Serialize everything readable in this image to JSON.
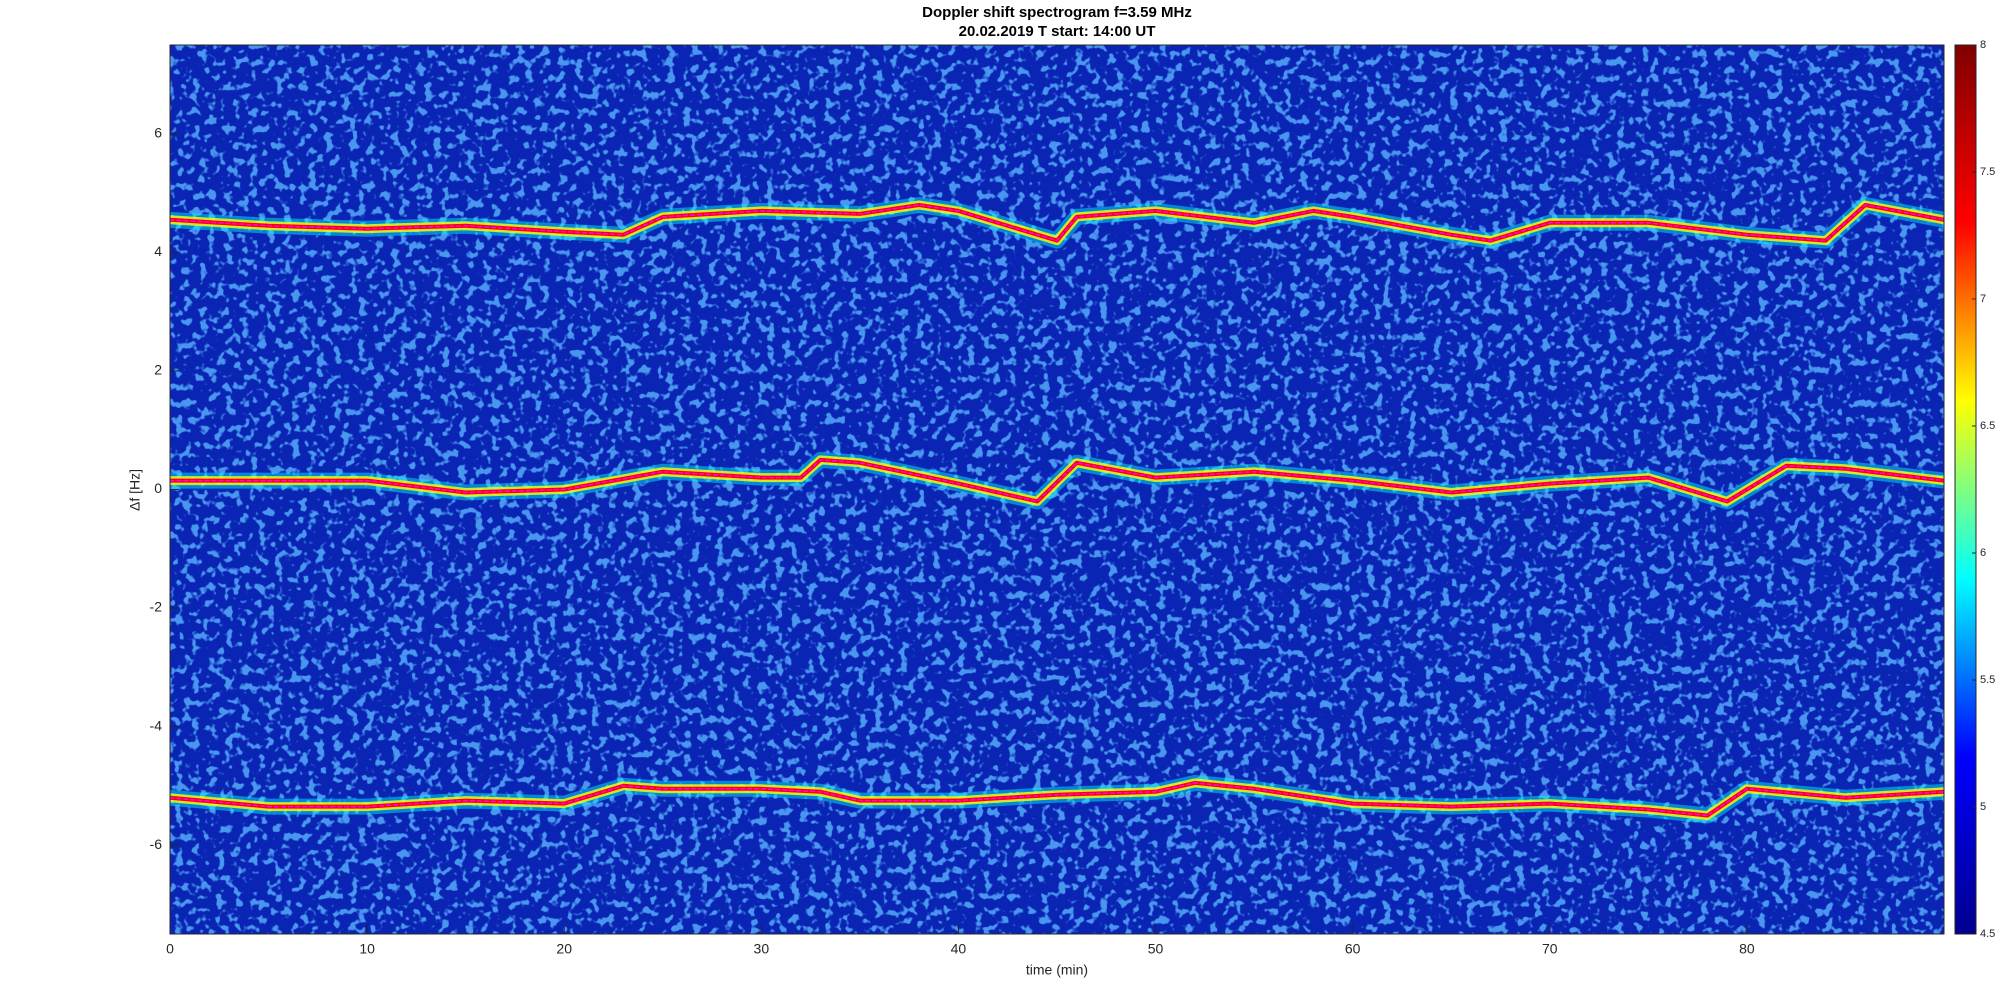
{
  "chart_data": {
    "type": "spectrogram",
    "title": "Doppler shift spectrogram f=3.59 MHz",
    "subtitle": "20.02.2019   T start: 14:00 UT",
    "x_label": "time (min)",
    "y_label": "Δf [Hz]",
    "xlim": [
      0,
      90
    ],
    "xticks": [
      0,
      10,
      20,
      30,
      40,
      50,
      60,
      70,
      80
    ],
    "ylim": [
      -7.5,
      7.5
    ],
    "yticks": [
      -6,
      -4,
      -2,
      0,
      2,
      4,
      6
    ],
    "colormap": "jet",
    "clim": [
      4.5,
      8
    ],
    "cticks": [
      4.5,
      5,
      5.5,
      6,
      6.5,
      7,
      7.5,
      8
    ],
    "series": [
      {
        "color": "#ff00ff",
        "x": [
          0,
          5,
          10,
          15,
          20,
          23,
          25,
          30,
          35,
          38,
          40,
          45,
          46,
          50,
          55,
          58,
          60,
          65,
          67,
          70,
          75,
          80,
          84,
          86,
          90
        ],
        "values": [
          4.55,
          4.45,
          4.4,
          4.45,
          4.35,
          4.3,
          4.6,
          4.7,
          4.65,
          4.8,
          4.7,
          4.2,
          4.6,
          4.7,
          4.5,
          4.7,
          4.6,
          4.3,
          4.2,
          4.5,
          4.5,
          4.3,
          4.2,
          4.8,
          4.55
        ]
      },
      {
        "color": "#ff00ff",
        "x": [
          0,
          5,
          10,
          15,
          20,
          25,
          30,
          32,
          33,
          35,
          40,
          44,
          46,
          50,
          55,
          60,
          65,
          70,
          75,
          79,
          82,
          85,
          90
        ],
        "values": [
          0.15,
          0.15,
          0.15,
          -0.05,
          0,
          0.3,
          0.2,
          0.2,
          0.5,
          0.45,
          0.1,
          -0.2,
          0.45,
          0.2,
          0.3,
          0.15,
          -0.05,
          0.1,
          0.2,
          -0.2,
          0.4,
          0.35,
          0.15
        ]
      },
      {
        "color": "#ff00ff",
        "x": [
          0,
          5,
          10,
          15,
          20,
          23,
          25,
          30,
          33,
          35,
          40,
          45,
          50,
          52,
          55,
          60,
          65,
          70,
          75,
          78,
          80,
          85,
          90
        ],
        "values": [
          -5.2,
          -5.35,
          -5.35,
          -5.25,
          -5.3,
          -5,
          -5.05,
          -5.05,
          -5.1,
          -5.25,
          -5.25,
          -5.15,
          -5.1,
          -4.95,
          -5.05,
          -5.3,
          -5.35,
          -5.3,
          -5.4,
          -5.5,
          -5.05,
          -5.2,
          -5.1
        ]
      }
    ]
  }
}
